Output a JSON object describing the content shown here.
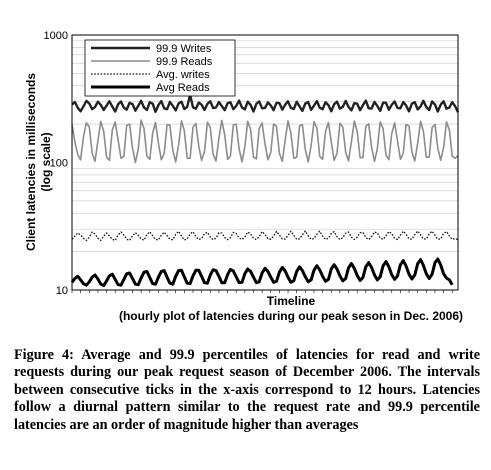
{
  "chart_data": {
    "type": "line",
    "ylabel_line1": "Client latencies in milliseconds",
    "ylabel_line2": "(log scale)",
    "xlabel_line1": "Timeline",
    "xlabel_line2": "(hourly plot of latencies during our peak seson in Dec. 2006)",
    "yscale": "log",
    "ylim": [
      10,
      1000
    ],
    "yticks": [
      "10",
      "100",
      "1000"
    ],
    "grid": "horizontal",
    "legend_position": "top-left",
    "series": [
      {
        "name": "99.9 Writes",
        "style": "dark-solid",
        "color": "#222222",
        "values": [
          285,
          298,
          268,
          252,
          276,
          304,
          290,
          262,
          272,
          300,
          283,
          258,
          280,
          302,
          275,
          251,
          286,
          301,
          269,
          260,
          294,
          287,
          255,
          279,
          305,
          270,
          258,
          297,
          289,
          250,
          282,
          303,
          266,
          262,
          299,
          278,
          256,
          291,
          300,
          263,
          273,
          340,
          271,
          264,
          295,
          284,
          258,
          288,
          302,
          267,
          270,
          298,
          277,
          257,
          292,
          297,
          262,
          278,
          306,
          270,
          261,
          300,
          283,
          251,
          289,
          301,
          266,
          268,
          296,
          280,
          257,
          294,
          292,
          260,
          284,
          302,
          268,
          263,
          300,
          275,
          254,
          290,
          298,
          259,
          279,
          303,
          269,
          262,
          297,
          282,
          252,
          286,
          300,
          265,
          273,
          304,
          273,
          256,
          292,
          289,
          257,
          281,
          306,
          266,
          265,
          299,
          278,
          254,
          295,
          294,
          259,
          283,
          301,
          268,
          266,
          298,
          280,
          252,
          289,
          297,
          261,
          276,
          305,
          272,
          258,
          301,
          285,
          251,
          284,
          302,
          264,
          270,
          297,
          277,
          248
        ]
      },
      {
        "name": "99.9 Reads",
        "style": "gray-solid",
        "color": "#8c8c8c",
        "values": [
          200,
          145,
          115,
          105,
          160,
          205,
          190,
          118,
          102,
          148,
          210,
          175,
          110,
          104,
          180,
          208,
          150,
          108,
          112,
          195,
          200,
          130,
          100,
          128,
          215,
          185,
          112,
          106,
          170,
          206,
          142,
          105,
          118,
          198,
          196,
          125,
          101,
          138,
          212,
          178,
          108,
          108,
          190,
          202,
          135,
          104,
          122,
          207,
          188,
          116,
          103,
          155,
          214,
          165,
          106,
          112,
          197,
          200,
          128,
          101,
          132,
          210,
          182,
          110,
          107,
          185,
          204,
          140,
          105,
          120,
          200,
          192,
          118,
          102,
          150,
          212,
          170,
          108,
          110,
          194,
          198,
          126,
          101,
          135,
          209,
          186,
          112,
          106,
          175,
          206,
          145,
          104,
          118,
          203,
          190,
          120,
          103,
          145,
          211,
          175,
          109,
          109,
          192,
          201,
          132,
          102,
          128,
          208,
          184,
          114,
          105,
          168,
          205,
          148,
          106,
          119,
          199,
          193,
          121,
          103,
          142,
          210,
          176,
          110,
          110,
          188,
          199,
          130,
          104,
          131,
          208,
          180,
          112,
          108,
          113
        ]
      },
      {
        "name": "Avg. writes",
        "style": "dotted",
        "color": "#111111",
        "values": [
          25,
          26.5,
          28,
          27,
          25.5,
          24.5,
          26,
          28.5,
          27.5,
          25.5,
          24.5,
          26.5,
          28,
          26.5,
          25,
          24.5,
          27,
          28.5,
          27,
          25,
          24.5,
          26.5,
          28.2,
          26.8,
          25.2,
          24.6,
          27.2,
          28.6,
          26.6,
          24.9,
          24.7,
          26.9,
          28.4,
          26.7,
          25,
          24.8,
          27.4,
          28.8,
          26.5,
          24.7,
          25.1,
          27.6,
          28.6,
          26.2,
          24.9,
          25.3,
          27.8,
          28.3,
          26,
          24.8,
          25.5,
          28.1,
          28,
          25.8,
          24.8,
          25.7,
          28.3,
          27.8,
          25.6,
          24.9,
          26,
          28.5,
          27.5,
          25.4,
          24.9,
          26.2,
          28.7,
          27.3,
          25.2,
          25,
          26.5,
          28.8,
          27,
          25.1,
          25.1,
          26.8,
          28.9,
          26.8,
          25,
          25.2,
          27.1,
          29,
          26.6,
          25,
          25.3,
          27.4,
          28.9,
          26.4,
          24.9,
          25.5,
          27.7,
          28.7,
          26.2,
          24.9,
          25.7,
          27.9,
          28.5,
          26,
          24.9,
          26,
          28.2,
          28.3,
          25.8,
          24.9,
          26.3,
          28.5,
          28,
          25.6,
          24.9,
          26.6,
          28.7,
          27.7,
          25.4,
          24.9,
          26.9,
          28.9,
          27.4,
          25.2,
          25,
          27.2,
          29,
          27.1,
          25.1,
          25.1,
          27.5,
          28.9,
          26.8,
          25,
          25.2,
          27.8,
          28.7,
          26.5,
          25,
          25.4,
          24.8
        ]
      },
      {
        "name": "Avg Reads",
        "style": "black-thick",
        "color": "#000000",
        "values": [
          11.5,
          12.3,
          12.8,
          12,
          11.2,
          10.9,
          11.6,
          12.6,
          13.1,
          12.2,
          11.1,
          10.8,
          11.8,
          12.9,
          13.3,
          12.1,
          11,
          10.9,
          12.1,
          13.4,
          13.6,
          12.3,
          11.1,
          11,
          12.4,
          13.8,
          14,
          12.5,
          11.2,
          11.1,
          12.6,
          14,
          14.2,
          12.6,
          11.3,
          11.1,
          12.8,
          14.2,
          14.3,
          12.7,
          11.3,
          11.2,
          12.9,
          14.3,
          14.3,
          12.8,
          11.4,
          11.3,
          13.1,
          14.4,
          14.2,
          12.8,
          11.4,
          11.4,
          13.2,
          14.5,
          14.1,
          12.7,
          11.4,
          11.5,
          13.4,
          14.6,
          14,
          12.6,
          11.4,
          11.6,
          13.6,
          14.8,
          14,
          12.6,
          11.5,
          11.7,
          13.8,
          15,
          14.1,
          12.6,
          11.5,
          11.8,
          14,
          15.2,
          14.2,
          12.7,
          11.6,
          12,
          14.3,
          15.5,
          14.4,
          12.8,
          11.7,
          12.1,
          14.6,
          15.8,
          14.6,
          12.9,
          11.8,
          12.3,
          14.9,
          16.1,
          14.8,
          13,
          11.9,
          12.5,
          15.2,
          16.4,
          15,
          13.1,
          12,
          12.7,
          15.5,
          16.7,
          15.2,
          13.2,
          12.1,
          12.9,
          15.8,
          17,
          15.4,
          13.3,
          12.2,
          13.1,
          16.1,
          17.3,
          15.6,
          13.4,
          12.3,
          13.3,
          16.4,
          17.5,
          15.7,
          13.4,
          12.4,
          12,
          11
        ]
      }
    ]
  },
  "caption": "Figure 4: Average and 99.9 percentiles of latencies for read and write requests during our peak request season of December 2006. The intervals between consecutive ticks in the x-axis correspond to 12 hours. Latencies follow a diurnal pattern similar to the request rate and 99.9 percentile latencies are an order of magnitude higher than averages"
}
